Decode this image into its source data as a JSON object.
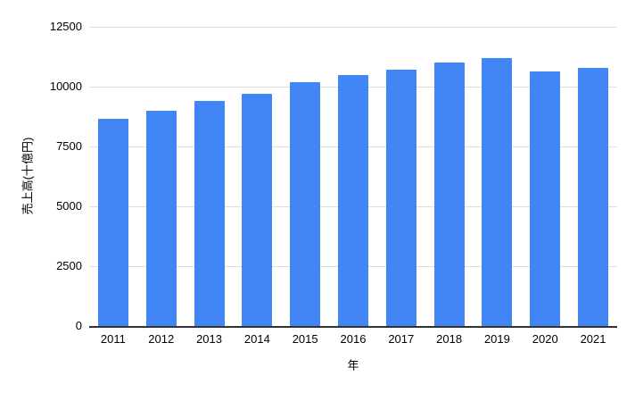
{
  "chart_data": {
    "type": "bar",
    "title": "",
    "categories": [
      "2011",
      "2012",
      "2013",
      "2014",
      "2015",
      "2016",
      "2017",
      "2018",
      "2019",
      "2020",
      "2021"
    ],
    "values": [
      8650,
      9000,
      9400,
      9700,
      10200,
      10500,
      10700,
      11000,
      11200,
      10650,
      10800
    ],
    "xlabel": "年",
    "ylabel": "売上高(十億円)",
    "ylim": [
      0,
      12500
    ],
    "yticks": [
      0,
      2500,
      5000,
      7500,
      10000,
      12500
    ],
    "grid": true,
    "legend": "none",
    "colors": {
      "bar": "#4285F4",
      "gridline": "#dddddd",
      "axis_line": "#333333",
      "text": "#000000",
      "background": "#ffffff"
    }
  }
}
